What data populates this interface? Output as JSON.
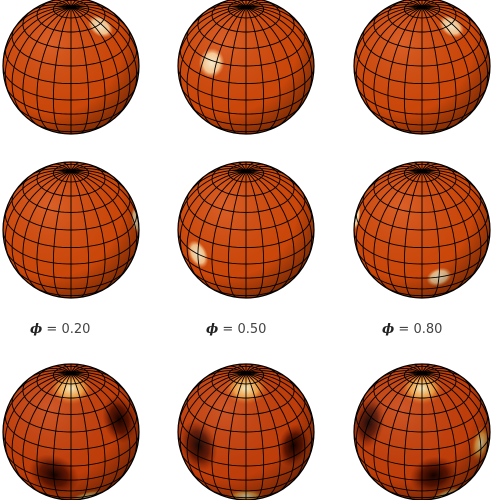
{
  "phases": [
    {
      "symbol": "ϕ",
      "equals": "=",
      "value": "0.20"
    },
    {
      "symbol": "ϕ",
      "equals": "=",
      "value": "0.50"
    },
    {
      "symbol": "ϕ",
      "equals": "=",
      "value": "0.80"
    }
  ],
  "colors": {
    "surface": "#d54a0a",
    "surface_dark": "#8a2a05",
    "spot": "#ffd9a3",
    "grid": "#000000",
    "map_hot": "#fff1c0",
    "map_cold": "#150300"
  },
  "rows": [
    {
      "row": "model-top",
      "globes": [
        {
          "spots": [
            {
              "lon": 55,
              "lat": 58,
              "size": 16
            }
          ]
        },
        {
          "spots": [
            {
              "lon": -35,
              "lat": 28,
              "size": 17
            }
          ]
        },
        {
          "spots": [
            {
              "lon": 55,
              "lat": 58,
              "size": 16
            }
          ]
        }
      ]
    },
    {
      "row": "model-middle",
      "globes": [
        {
          "spots": [
            {
              "lon": 80,
              "lat": 15,
              "size": 15
            }
          ]
        },
        {
          "spots": [
            {
              "lon": -45,
              "lat": 0,
              "size": 17
            }
          ]
        },
        {
          "spots": [
            {
              "lon": -85,
              "lat": 15,
              "size": 14
            },
            {
              "lon": 15,
              "lat": -15,
              "size": 15
            }
          ]
        }
      ]
    },
    {
      "row": "reconstruction",
      "globes": [
        {
          "blobs": [
            {
              "lon": 55,
              "lat": 30,
              "size": 28,
              "v": -1
            },
            {
              "lon": -15,
              "lat": -10,
              "size": 30,
              "v": -0.7
            },
            {
              "lon": 20,
              "lat": -45,
              "size": 22,
              "v": 1
            },
            {
              "lon": -75,
              "lat": -45,
              "size": 20,
              "v": 0.8
            },
            {
              "lon": 0,
              "lat": 70,
              "size": 25,
              "v": 0.9
            }
          ]
        },
        {
          "blobs": [
            {
              "lon": -45,
              "lat": 10,
              "size": 30,
              "v": -1
            },
            {
              "lon": 45,
              "lat": 10,
              "size": 25,
              "v": -0.8
            },
            {
              "lon": 0,
              "lat": -40,
              "size": 22,
              "v": 1
            },
            {
              "lon": 0,
              "lat": 70,
              "size": 25,
              "v": 0.9
            }
          ]
        },
        {
          "blobs": [
            {
              "lon": -60,
              "lat": 25,
              "size": 30,
              "v": -1
            },
            {
              "lon": 10,
              "lat": -10,
              "size": 28,
              "v": -0.6
            },
            {
              "lon": 60,
              "lat": 5,
              "size": 22,
              "v": 0.9
            },
            {
              "lon": 30,
              "lat": -45,
              "size": 22,
              "v": 0.8
            },
            {
              "lon": 0,
              "lat": 70,
              "size": 25,
              "v": 0.9
            }
          ]
        }
      ]
    }
  ]
}
